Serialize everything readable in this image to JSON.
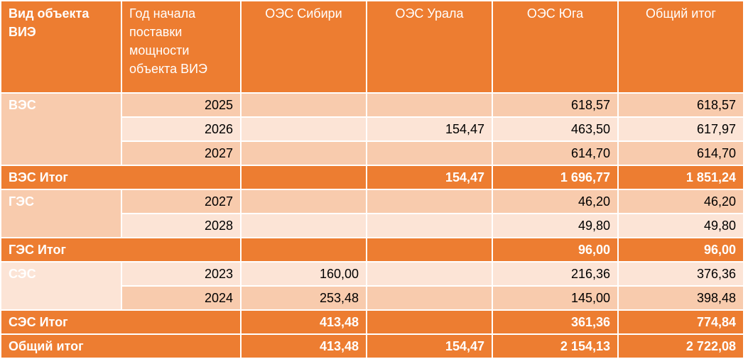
{
  "header": [
    "Вид объекта ВИЭ",
    "Год начала поставки мощности объекта ВИЭ",
    "ОЭС Сибири",
    "ОЭС Урала",
    "ОЭС Юга",
    "Общий итог"
  ],
  "groups": [
    {
      "name": "ВЭС",
      "rows": [
        {
          "year": "2025",
          "yug": "618,57",
          "total": "618,57"
        },
        {
          "year": "2026",
          "ural": "154,47",
          "yug": "463,50",
          "total": "617,97"
        },
        {
          "year": "2027",
          "yug": "614,70",
          "total": "614,70"
        }
      ],
      "subtotal": {
        "label": "ВЭС Итог",
        "ural": "154,47",
        "yug": "1 696,77",
        "total": "1 851,24"
      }
    },
    {
      "name": "ГЭС",
      "rows": [
        {
          "year": "2027",
          "yug": "46,20",
          "total": "46,20"
        },
        {
          "year": "2028",
          "yug": "49,80",
          "total": "49,80"
        }
      ],
      "subtotal": {
        "label": "ГЭС Итог",
        "yug": "96,00",
        "total": "96,00"
      }
    },
    {
      "name": "СЭС",
      "rows": [
        {
          "year": "2023",
          "sib": "160,00",
          "yug": "216,36",
          "total": "376,36"
        },
        {
          "year": "2024",
          "sib": "253,48",
          "yug": "145,00",
          "total": "398,48"
        }
      ],
      "subtotal": {
        "label": "СЭС Итог",
        "sib": "413,48",
        "yug": "361,36",
        "total": "774,84"
      }
    }
  ],
  "grand_total": {
    "label": "Общий итог",
    "sib": "413,48",
    "ural": "154,47",
    "yug": "2 154,13",
    "total": "2 722,08"
  }
}
